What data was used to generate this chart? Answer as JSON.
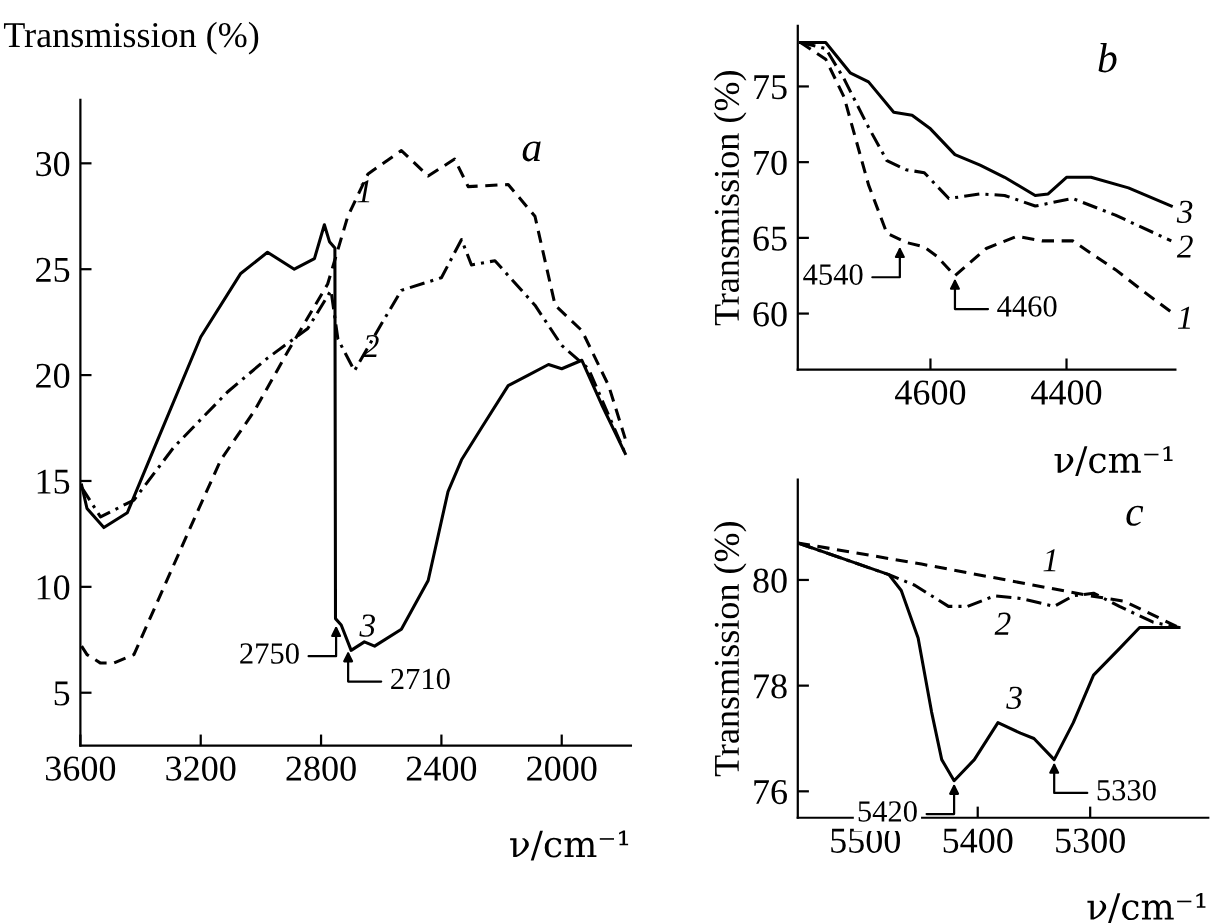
{
  "chart_data": [
    {
      "type": "line",
      "title": "a",
      "xlabel": "ν/cm⁻¹",
      "ylabel": "Transmission (%)",
      "xlim": [
        3600,
        1770
      ],
      "ylim": [
        2.5,
        33
      ],
      "xticks": [
        3600,
        3200,
        2800,
        2400,
        2000
      ],
      "yticks": [
        5,
        10,
        15,
        20,
        25,
        30
      ],
      "series": [
        {
          "name": "1",
          "color": "#000000",
          "line_style": "dashed",
          "x": [
            3596,
            3578,
            3533,
            3489,
            3422,
            3322,
            3222,
            3133,
            3022,
            2911,
            2778,
            2711,
            2644,
            2533,
            2444,
            2356,
            2311,
            2178,
            2089,
            2022,
            1933,
            1844,
            1789
          ],
          "values": [
            7.2,
            6.8,
            6.4,
            6.4,
            6.8,
            10,
            13.2,
            16,
            18.3,
            21.1,
            24.3,
            27.5,
            29.5,
            30.6,
            29.4,
            30.2,
            28.9,
            29,
            27.5,
            23.3,
            22.1,
            19.5,
            17
          ]
        },
        {
          "name": "2",
          "color": "#000000",
          "line_style": "dashdot",
          "x": [
            3596,
            3533,
            3422,
            3289,
            3111,
            2978,
            2844,
            2767,
            2744,
            2689,
            2600,
            2533,
            2400,
            2333,
            2300,
            2222,
            2089,
            2000,
            1911,
            1789
          ],
          "values": [
            14.7,
            13.3,
            14.1,
            16.6,
            19.2,
            20.8,
            22.2,
            24,
            21.7,
            20.2,
            22.4,
            24,
            24.6,
            26.4,
            25.2,
            25.4,
            23.3,
            21.4,
            20.3,
            16.3
          ]
        },
        {
          "name": "3",
          "color": "#000000",
          "line_style": "solid",
          "x": [
            3596,
            3578,
            3522,
            3444,
            3356,
            3200,
            3067,
            2978,
            2889,
            2822,
            2789,
            2772,
            2754,
            2752,
            2733,
            2700,
            2656,
            2622,
            2533,
            2444,
            2378,
            2333,
            2267,
            2178,
            2111,
            2044,
            2000,
            1933,
            1867,
            1789
          ],
          "values": [
            14.8,
            13.7,
            12.8,
            13.5,
            16.5,
            21.8,
            24.8,
            25.8,
            25,
            25.5,
            27.1,
            26.3,
            26,
            8.5,
            8.2,
            7,
            7.4,
            7.2,
            8,
            10.3,
            14.5,
            16,
            17.5,
            19.5,
            20,
            20.5,
            20.3,
            20.7,
            18.6,
            16.3
          ]
        }
      ],
      "annotations": [
        {
          "text": "2750",
          "x": 2750,
          "y": 8.3
        },
        {
          "text": "2710",
          "x": 2710,
          "y": 7.1
        }
      ]
    },
    {
      "type": "line",
      "title": "b",
      "xlabel": "ν/cm⁻¹",
      "ylabel": "Transmission (%)",
      "xlim": [
        4795,
        4240
      ],
      "ylim": [
        56.3,
        79
      ],
      "xticks": [
        4600,
        4400
      ],
      "yticks": [
        60,
        65,
        70,
        75
      ],
      "series": [
        {
          "name": "1",
          "color": "#000000",
          "line_style": "dashed",
          "x": [
            4791,
            4754,
            4727,
            4691,
            4664,
            4636,
            4609,
            4591,
            4564,
            4518,
            4473,
            4436,
            4391,
            4328,
            4282,
            4246
          ],
          "values": [
            77.9,
            76.8,
            74.3,
            68.5,
            65.3,
            64.7,
            64.4,
            63.8,
            62.5,
            64.3,
            65.1,
            64.8,
            64.8,
            62.9,
            61.3,
            60.1
          ]
        },
        {
          "name": "2",
          "color": "#000000",
          "line_style": "dashdot",
          "x": [
            4791,
            4754,
            4727,
            4691,
            4664,
            4636,
            4609,
            4573,
            4527,
            4491,
            4446,
            4391,
            4328,
            4246
          ],
          "values": [
            77.9,
            77.5,
            75.5,
            72.3,
            70.1,
            69.5,
            69.3,
            67.6,
            67.9,
            67.8,
            67.1,
            67.6,
            66.5,
            64.8
          ]
        },
        {
          "name": "3",
          "color": "#000000",
          "line_style": "solid",
          "x": [
            4791,
            4754,
            4718,
            4691,
            4654,
            4627,
            4600,
            4564,
            4527,
            4491,
            4446,
            4427,
            4400,
            4364,
            4309,
            4246
          ],
          "values": [
            77.9,
            77.9,
            75.9,
            75.3,
            73.3,
            73.1,
            72.2,
            70.5,
            69.8,
            69,
            67.8,
            67.9,
            69,
            69,
            68.3,
            67.1
          ]
        }
      ],
      "annotations": [
        {
          "text": "4540",
          "x": 4645,
          "y": 64.6
        },
        {
          "text": "4460",
          "x": 4564,
          "y": 62.5
        }
      ]
    },
    {
      "type": "line",
      "title": "c",
      "xlabel": "ν/cm⁻¹",
      "ylabel": "Transmission (%)",
      "xlim": [
        5560,
        5195
      ],
      "ylim": [
        75.5,
        81.9
      ],
      "xticks": [
        5500,
        5400,
        5300
      ],
      "yticks": [
        76,
        78,
        80
      ],
      "series": [
        {
          "name": "1",
          "color": "#000000",
          "line_style": "dashed",
          "x": [
            5560,
            5450,
            5350,
            5300,
            5270,
            5221
          ],
          "values": [
            80.7,
            80.3,
            79.9,
            79.7,
            79.6,
            79.1
          ]
        },
        {
          "name": "2",
          "color": "#000000",
          "line_style": "dashdot",
          "x": [
            5560,
            5479,
            5456,
            5426,
            5409,
            5385,
            5362,
            5332,
            5315,
            5297,
            5274,
            5244,
            5221
          ],
          "values": [
            80.7,
            80.1,
            79.9,
            79.5,
            79.5,
            79.7,
            79.65,
            79.5,
            79.7,
            79.75,
            79.5,
            79.2,
            79.1
          ]
        },
        {
          "name": "3",
          "color": "#000000",
          "line_style": "solid",
          "x": [
            5560,
            5479,
            5468,
            5453,
            5441,
            5432,
            5421,
            5403,
            5382,
            5362,
            5350,
            5332,
            5315,
            5297,
            5274,
            5256,
            5221
          ],
          "values": [
            80.7,
            80.1,
            79.8,
            78.9,
            77.5,
            76.6,
            76.2,
            76.6,
            77.3,
            77.1,
            77,
            76.6,
            77.3,
            78.2,
            78.7,
            79.1,
            79.1
          ]
        }
      ],
      "annotations": [
        {
          "text": "5420",
          "x": 5421,
          "y": 76.2
        },
        {
          "text": "5330",
          "x": 5332,
          "y": 76.6
        }
      ]
    }
  ]
}
